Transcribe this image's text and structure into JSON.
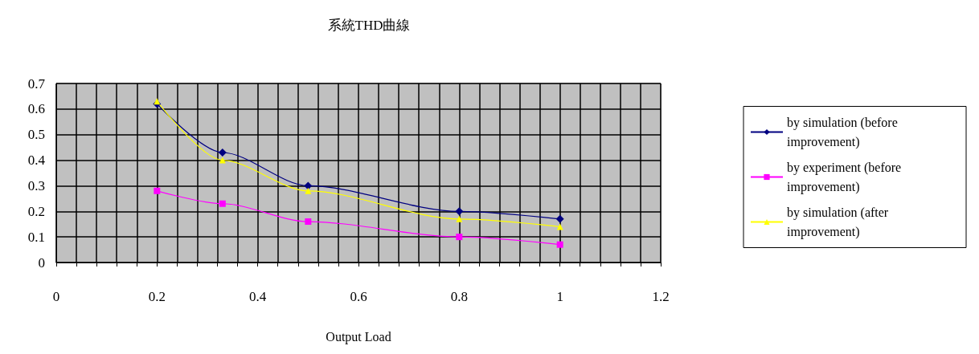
{
  "chart_data": {
    "type": "line",
    "title": "系統THD曲線",
    "xlabel": "Output Load",
    "xlim": [
      0,
      1.2
    ],
    "xticks": [
      0,
      {
        "value": 0.04,
        "label": null
      },
      {
        "value": 0.08,
        "label": null
      },
      {
        "value": 0.12,
        "label": null
      },
      {
        "value": 0.16,
        "label": null
      },
      {
        "value": 0.2,
        "label": "0.2"
      },
      {
        "value": 0.24,
        "label": null
      },
      {
        "value": 0.28,
        "label": null
      },
      {
        "value": 0.32,
        "label": null
      },
      {
        "value": 0.36,
        "label": null
      },
      {
        "value": 0.4,
        "label": "0.4"
      },
      {
        "value": 0.44,
        "label": null
      },
      {
        "value": 0.48,
        "label": null
      },
      {
        "value": 0.52,
        "label": null
      },
      {
        "value": 0.56,
        "label": null
      },
      {
        "value": 0.6,
        "label": "0.6"
      },
      {
        "value": 0.64,
        "label": null
      },
      {
        "value": 0.68,
        "label": null
      },
      {
        "value": 0.72,
        "label": null
      },
      {
        "value": 0.76,
        "label": null
      },
      {
        "value": 0.8,
        "label": "0.8"
      },
      {
        "value": 0.84,
        "label": null
      },
      {
        "value": 0.88,
        "label": null
      },
      {
        "value": 0.92,
        "label": null
      },
      {
        "value": 0.96,
        "label": null
      },
      1,
      {
        "value": 1.04,
        "label": null
      },
      {
        "value": 1.08,
        "label": null
      },
      {
        "value": 1.12,
        "label": null
      },
      {
        "value": 1.16,
        "label": null
      },
      1.2
    ],
    "ylim": [
      0,
      0.7
    ],
    "yticks": [
      0,
      0.1,
      0.2,
      0.3,
      0.4,
      0.5,
      0.6,
      0.7
    ],
    "grid": true,
    "legend": "right",
    "x": [
      0.2,
      0.33,
      0.5,
      0.8,
      1
    ],
    "series": [
      {
        "name": "by simulation (before improvement)",
        "color": "#000080",
        "marker": "diamond",
        "values": [
          0.62,
          0.43,
          0.3,
          0.2,
          0.17
        ]
      },
      {
        "name": "by experiment (before improvement)",
        "color": "#ff00ff",
        "marker": "square",
        "values": [
          0.28,
          0.23,
          0.16,
          0.1,
          0.07
        ]
      },
      {
        "name": "by simulation (after improvement)",
        "color": "#ffff00",
        "marker": "triangle",
        "values": [
          0.63,
          0.4,
          0.28,
          0.17,
          0.14
        ]
      }
    ]
  }
}
